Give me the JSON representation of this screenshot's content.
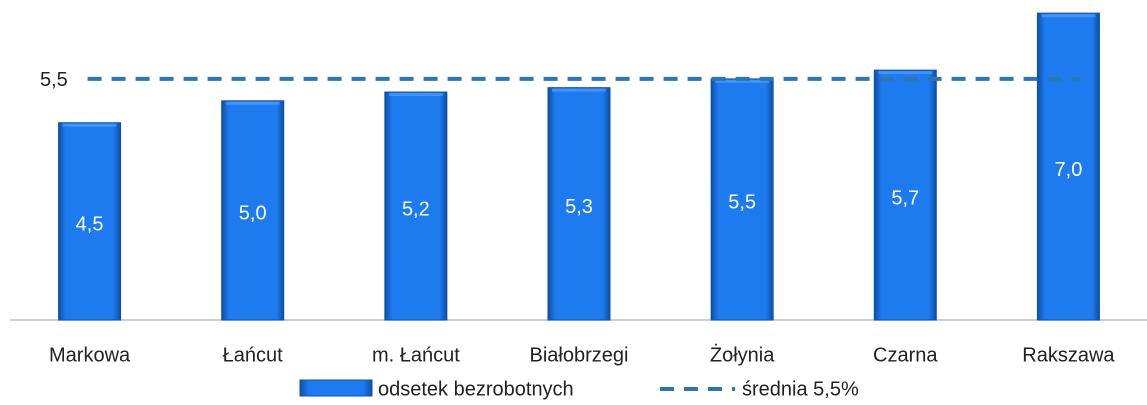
{
  "chart_data": {
    "type": "bar",
    "categories": [
      "Markowa",
      "Łańcut",
      "m. Łańcut",
      "Białobrzegi",
      "Żołynia",
      "Czarna",
      "Rakszawa"
    ],
    "series": [
      {
        "name": "odsetek bezrobotnych",
        "color": "#1e7bef",
        "values": [
          4.5,
          5.0,
          5.2,
          5.3,
          5.5,
          5.7,
          7.0
        ],
        "value_labels": [
          "4,5",
          "5,0",
          "5,2",
          "5,3",
          "5,5",
          "5,7",
          "7,0"
        ]
      }
    ],
    "average": {
      "name": "średnia 5,5%",
      "value": 5.5,
      "label": "5,5",
      "color": "#2e75b6"
    },
    "ylim": [
      0,
      7.3
    ]
  }
}
